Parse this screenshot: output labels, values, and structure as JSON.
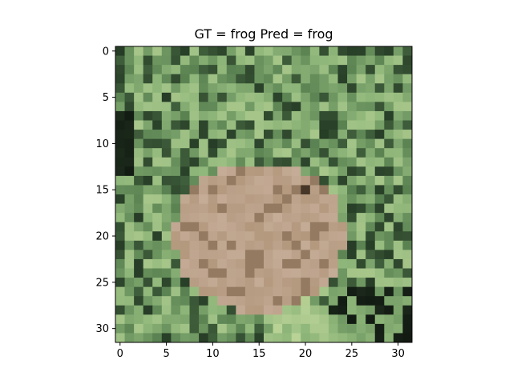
{
  "title": "GT = frog Pred = frog",
  "image": {
    "grid_size": 32,
    "description_label": "image-pixels"
  },
  "axes": {
    "x_ticks": [
      "0",
      "5",
      "10",
      "15",
      "20",
      "25",
      "30"
    ],
    "y_ticks": [
      "0",
      "5",
      "10",
      "15",
      "20",
      "25",
      "30"
    ]
  }
}
